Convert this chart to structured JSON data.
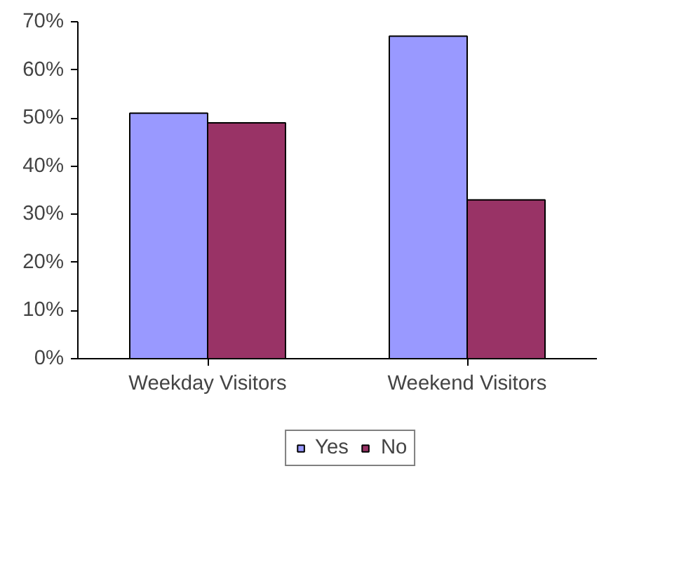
{
  "chart_data": {
    "type": "bar",
    "categories": [
      "Weekday Visitors",
      "Weekend Visitors"
    ],
    "series": [
      {
        "name": "Yes",
        "color": "#9999ff",
        "values": [
          51,
          67
        ]
      },
      {
        "name": "No",
        "color": "#993366",
        "values": [
          49,
          33
        ]
      }
    ],
    "ylim": [
      0,
      70
    ],
    "yticks": [
      {
        "value": 0,
        "label": "0%"
      },
      {
        "value": 10,
        "label": "10%"
      },
      {
        "value": 20,
        "label": "20%"
      },
      {
        "value": 30,
        "label": "30%"
      },
      {
        "value": 40,
        "label": "40%"
      },
      {
        "value": 50,
        "label": "50%"
      },
      {
        "value": 60,
        "label": "60%"
      },
      {
        "value": 70,
        "label": "70%"
      }
    ],
    "grid": false,
    "legend": "bottom"
  }
}
